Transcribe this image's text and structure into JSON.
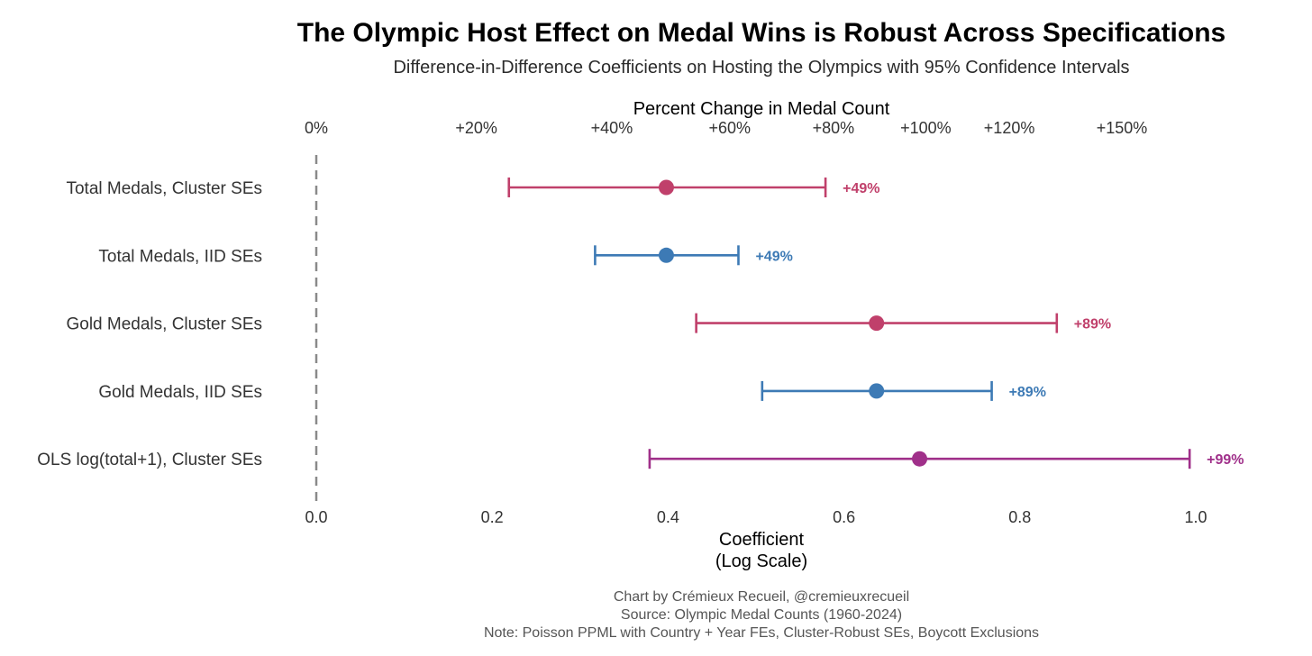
{
  "chart_data": {
    "type": "forest",
    "title": "The Olympic Host Effect on Medal Wins is Robust Across Specifications",
    "subtitle": "Difference-in-Difference Coefficients on Hosting the Olympics with 95% Confidence Intervals",
    "xlabel_line1": "Coefficient",
    "xlabel_line2": "(Log Scale)",
    "top_axis_label": "Percent Change in Medal Count",
    "xlim": [
      0.0,
      1.0
    ],
    "x_ticks": [
      {
        "value": 0.0,
        "label": "0.0"
      },
      {
        "value": 0.2,
        "label": "0.2"
      },
      {
        "value": 0.4,
        "label": "0.4"
      },
      {
        "value": 0.6,
        "label": "0.6"
      },
      {
        "value": 0.8,
        "label": "0.8"
      },
      {
        "value": 1.0,
        "label": "1.0"
      }
    ],
    "top_ticks": [
      {
        "value": 0.0,
        "label": "0%"
      },
      {
        "value": 0.182,
        "label": "+20%"
      },
      {
        "value": 0.336,
        "label": "+40%"
      },
      {
        "value": 0.47,
        "label": "+60%"
      },
      {
        "value": 0.588,
        "label": "+80%"
      },
      {
        "value": 0.693,
        "label": "+100%"
      },
      {
        "value": 0.788,
        "label": "+120%"
      },
      {
        "value": 0.916,
        "label": "+150%"
      }
    ],
    "reference_line": 0.0,
    "rows": [
      {
        "label": "Total Medals, Cluster SEs",
        "estimate": 0.398,
        "ci_low": 0.219,
        "ci_high": 0.579,
        "effect_label": "+49%",
        "color": "#c0406b"
      },
      {
        "label": "Total Medals, IID SEs",
        "estimate": 0.398,
        "ci_low": 0.317,
        "ci_high": 0.48,
        "effect_label": "+49%",
        "color": "#3d7ab5"
      },
      {
        "label": "Gold Medals, Cluster SEs",
        "estimate": 0.637,
        "ci_low": 0.432,
        "ci_high": 0.842,
        "effect_label": "+89%",
        "color": "#c0406b"
      },
      {
        "label": "Gold Medals, IID SEs",
        "estimate": 0.637,
        "ci_low": 0.507,
        "ci_high": 0.768,
        "effect_label": "+89%",
        "color": "#3d7ab5"
      },
      {
        "label": "OLS log(total+1), Cluster SEs",
        "estimate": 0.686,
        "ci_low": 0.379,
        "ci_high": 0.993,
        "effect_label": "+99%",
        "color": "#a0308a"
      }
    ]
  },
  "caption": {
    "line1": "Chart by Crémieux Recueil, @cremieuxrecueil",
    "line2": "Source: Olympic Medal Counts (1960-2024)",
    "line3": "Note: Poisson PPML with Country + Year FEs, Cluster-Robust SEs, Boycott Exclusions"
  }
}
